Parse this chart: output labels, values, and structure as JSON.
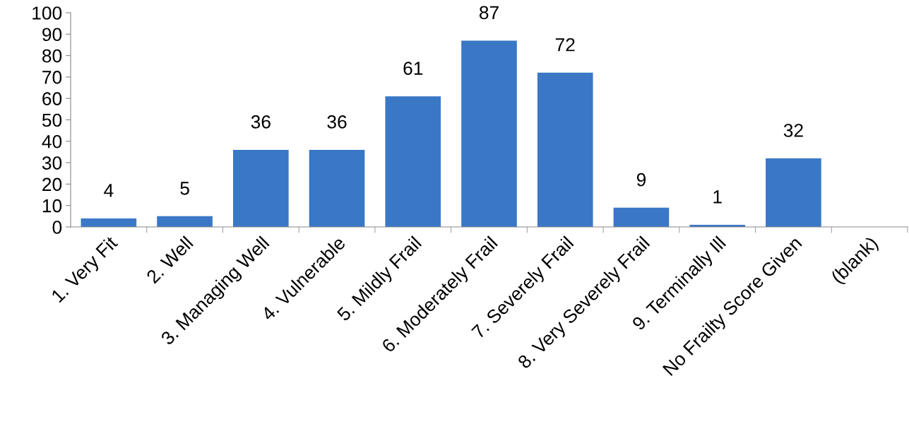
{
  "chart_data": {
    "type": "bar",
    "categories": [
      "1. Very Fit",
      "2. Well",
      "3. Managing Well",
      "4. Vulnerable",
      "5. Mildly Frail",
      "6. Moderately Frail",
      "7. Severely Frail",
      "8. Very Severely Frail",
      "9. Terminally Ill",
      "No Frailty Score Given",
      "(blank)"
    ],
    "values": [
      4,
      5,
      36,
      36,
      61,
      87,
      72,
      9,
      1,
      32,
      null
    ],
    "color": "#3a78c6",
    "ylim": [
      0,
      100
    ],
    "yticks": [
      0,
      10,
      20,
      30,
      40,
      50,
      60,
      70,
      80,
      90,
      100
    ],
    "grid": false,
    "data_labels": true
  }
}
